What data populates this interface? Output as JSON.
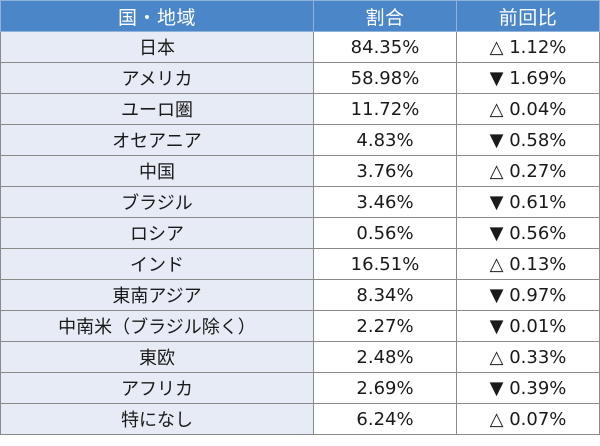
{
  "table": {
    "headers": [
      "国・地域",
      "割合",
      "前回比"
    ],
    "rows": [
      {
        "country": "日本",
        "ratio": "84.35%",
        "change": "△ 1.12%"
      },
      {
        "country": "アメリカ",
        "ratio": "58.98%",
        "change": "▼ 1.69%"
      },
      {
        "country": "ユーロ圏",
        "ratio": "11.72%",
        "change": "△ 0.04%"
      },
      {
        "country": "オセアニア",
        "ratio": "4.83%",
        "change": "▼ 0.58%"
      },
      {
        "country": "中国",
        "ratio": "3.76%",
        "change": "△ 0.27%"
      },
      {
        "country": "ブラジル",
        "ratio": "3.46%",
        "change": "▼ 0.61%"
      },
      {
        "country": "ロシア",
        "ratio": "0.56%",
        "change": "▼ 0.56%"
      },
      {
        "country": "インド",
        "ratio": "16.51%",
        "change": "△ 0.13%"
      },
      {
        "country": "東南アジア",
        "ratio": "8.34%",
        "change": "▼ 0.97%"
      },
      {
        "country": "中南米（ブラジル除く）",
        "ratio": "2.27%",
        "change": "▼ 0.01%"
      },
      {
        "country": "東欧",
        "ratio": "2.48%",
        "change": "△ 0.33%"
      },
      {
        "country": "アフリカ",
        "ratio": "2.69%",
        "change": "▼ 0.39%"
      },
      {
        "country": "特になし",
        "ratio": "6.24%",
        "change": "△ 0.07%"
      }
    ]
  },
  "colors": {
    "header_bg": "#4a86c8",
    "label_cell_bg": "#e6ebf6",
    "value_cell_bg": "#ffffff"
  }
}
